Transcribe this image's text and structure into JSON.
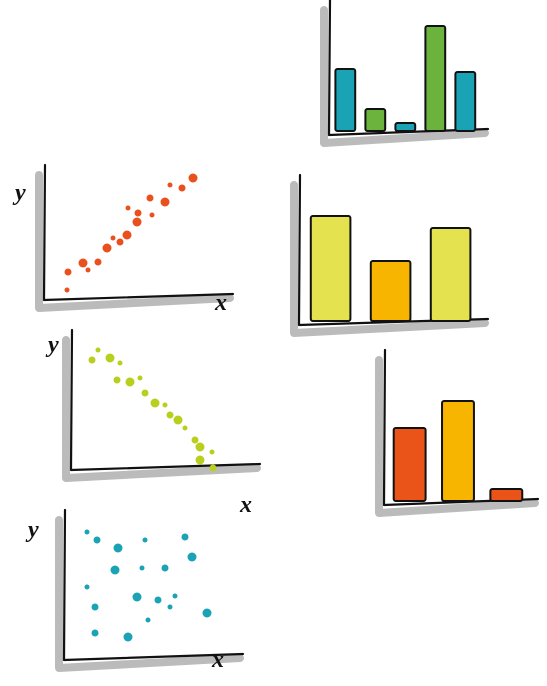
{
  "chart_data": [
    {
      "type": "bar",
      "values": [
        62,
        22,
        8,
        105,
        59
      ],
      "colors": [
        "#1aa3b5",
        "#6cb33e",
        "#1aa3b5",
        "#6cb33e",
        "#1aa3b5"
      ],
      "ylim": [
        0,
        120
      ]
    },
    {
      "type": "bar",
      "values": [
        105,
        60,
        93
      ],
      "colors": [
        "#e4e34f",
        "#f7b500",
        "#e4e34f"
      ],
      "ylim": [
        0,
        135
      ]
    },
    {
      "type": "bar",
      "values": [
        73,
        100,
        12
      ],
      "colors": [
        "#ea5418",
        "#f7b500",
        "#ea5418"
      ],
      "ylim": [
        0,
        140
      ]
    },
    {
      "type": "scatter",
      "x_label": "x",
      "y_label": "y",
      "color": "#e8501e",
      "xlim": [
        0,
        180
      ],
      "ylim": [
        0,
        120
      ],
      "x": [
        22,
        23,
        38,
        43,
        53,
        62,
        68,
        75,
        82,
        83,
        93,
        92,
        107,
        105,
        120,
        125,
        137,
        148
      ],
      "y": [
        10,
        28,
        37,
        30,
        38,
        52,
        62,
        58,
        65,
        92,
        87,
        78,
        85,
        102,
        98,
        115,
        112,
        122
      ]
    },
    {
      "type": "scatter",
      "x_label": "x",
      "y_label": "y",
      "color": "#b9cf1e",
      "xlim": [
        0,
        180
      ],
      "ylim": [
        0,
        125
      ],
      "x": [
        26,
        20,
        38,
        48,
        45,
        58,
        68,
        73,
        83,
        93,
        98,
        106,
        113,
        123,
        128,
        140,
        141,
        128
      ],
      "y": [
        120,
        110,
        112,
        107,
        90,
        88,
        92,
        77,
        67,
        65,
        55,
        50,
        42,
        30,
        23,
        18,
        2,
        10
      ]
    },
    {
      "type": "scatter",
      "x_label": "x",
      "y_label": "y",
      "color": "#1aa3b5",
      "xlim": [
        0,
        170
      ],
      "ylim": [
        0,
        135
      ],
      "x": [
        22,
        32,
        53,
        80,
        120,
        50,
        77,
        100,
        127,
        22,
        30,
        72,
        110,
        93,
        142,
        83,
        30,
        63,
        105
      ],
      "y": [
        128,
        120,
        112,
        120,
        123,
        90,
        92,
        92,
        103,
        73,
        53,
        63,
        64,
        60,
        47,
        40,
        27,
        23,
        53
      ]
    }
  ]
}
